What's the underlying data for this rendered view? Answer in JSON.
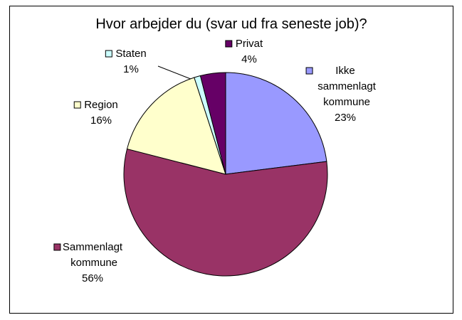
{
  "chart_data": {
    "type": "pie",
    "title": "Hvor arbejder du (svar ud fra seneste job)?",
    "categories": [
      "Ikke sammenlagt kommune",
      "Sammenlagt kommune",
      "Region",
      "Staten",
      "Privat"
    ],
    "values": [
      23,
      56,
      16,
      1,
      4
    ],
    "value_labels": [
      "23%",
      "56%",
      "16%",
      "1%",
      "4%"
    ],
    "colors": [
      "#9999ff",
      "#993366",
      "#ffffcc",
      "#ccffff",
      "#660066"
    ]
  }
}
